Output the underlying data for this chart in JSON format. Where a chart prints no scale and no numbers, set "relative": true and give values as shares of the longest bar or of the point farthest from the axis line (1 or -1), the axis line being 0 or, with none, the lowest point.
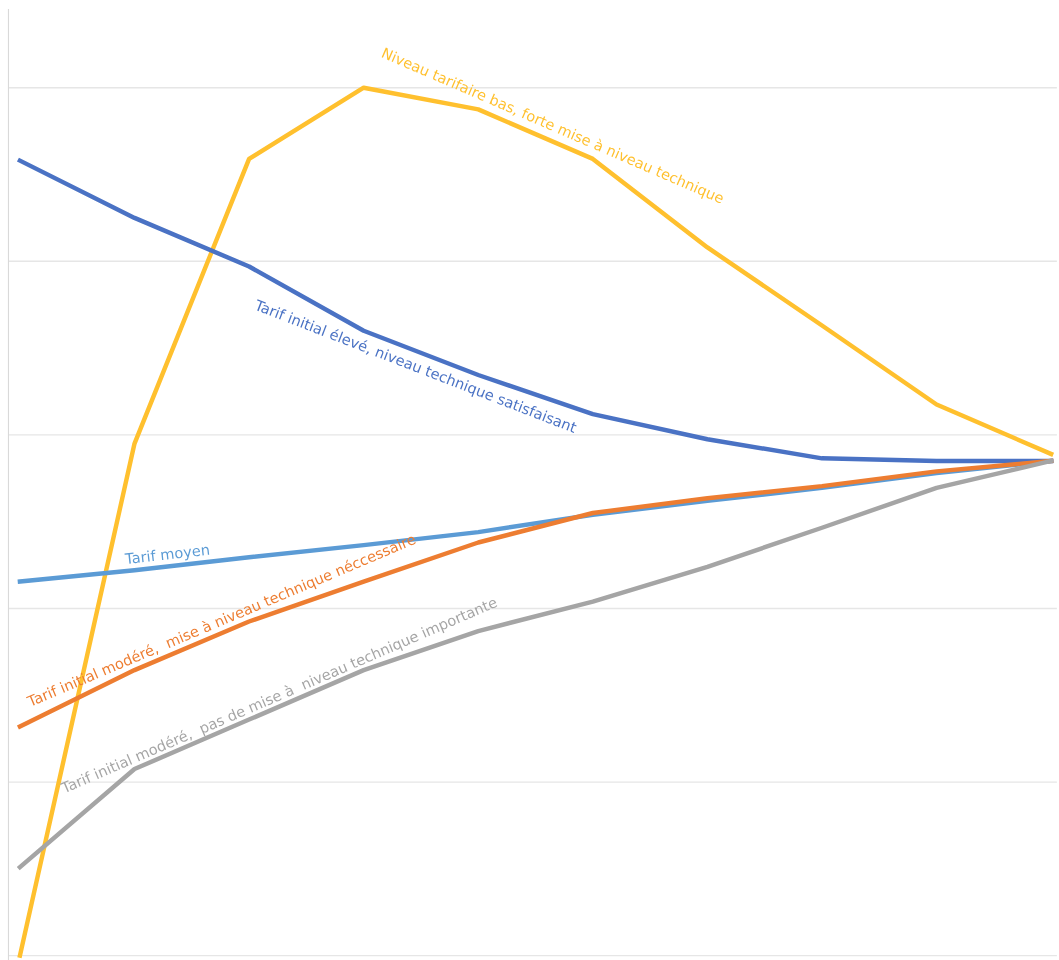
{
  "chart_data": {
    "type": "line",
    "relative": true,
    "grid": "y",
    "marker": "none",
    "line_style": "solid",
    "legend": false,
    "categories": [
      null,
      null,
      null,
      null,
      null,
      null,
      null,
      null,
      null,
      null
    ],
    "series": [
      {
        "name": "Niveau tarifaire bas, forte mise à niveau technique",
        "color": "#ffc02e",
        "values": [
          0,
          0.59,
          0.918,
          1.0,
          0.975,
          0.918,
          0.816,
          0.726,
          0.635,
          0.578
        ]
      },
      {
        "name": "Tarif initial élevé, niveau technique satisfaisant",
        "color": "#4a72c4",
        "values": [
          0.916,
          0.85,
          0.794,
          0.72,
          0.669,
          0.624,
          0.595,
          0.573,
          0.57,
          0.57
        ]
      },
      {
        "name": "Tarif moyen",
        "color": "#5b9bd5",
        "values": [
          0.431,
          0.444,
          0.459,
          0.473,
          0.488,
          0.508,
          0.524,
          0.539,
          0.556,
          0.57
        ]
      },
      {
        "name": "Tarif initial modéré,  mise à niveau technique néccessaire",
        "color": "#ed7d31",
        "values": [
          0.264,
          0.329,
          0.385,
          0.431,
          0.476,
          0.51,
          0.527,
          0.541,
          0.558,
          0.57
        ]
      },
      {
        "name": "Tarif initial modéré,  pas de mise à  niveau technique importante",
        "color": "#a5a5a5",
        "values": [
          0.102,
          0.215,
          0.272,
          0.329,
          0.374,
          0.408,
          0.448,
          0.493,
          0.539,
          0.57
        ]
      }
    ]
  }
}
